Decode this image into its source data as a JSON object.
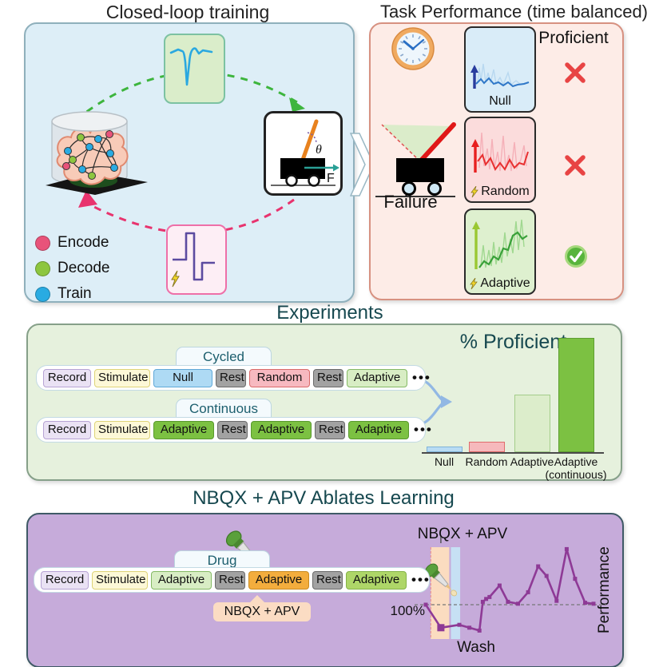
{
  "titles": {
    "closed_loop": "Closed-loop training",
    "task_performance": "Task Performance (time balanced)",
    "experiments": "Experiments",
    "ablation": "NBQX + APV Ablates Learning"
  },
  "closed_loop": {
    "legend": [
      {
        "label": "Encode",
        "color": "#e8537a"
      },
      {
        "label": "Decode",
        "color": "#8dc63f"
      },
      {
        "label": "Train",
        "color": "#29abe2"
      }
    ],
    "cart": {
      "theta_label": "θ",
      "force_label": "F"
    },
    "icons": {
      "spike_waveform": "spike-waveform-icon",
      "stimulus_waveform": "stimulus-pulse-icon",
      "lightning": "lightning-icon",
      "brain_dish": "brain-in-dish-icon"
    }
  },
  "task_performance": {
    "proficient_label": "Proficient",
    "failure_label": "Failure",
    "conditions": [
      {
        "label": "Null",
        "lightning": false,
        "verdict": "fail"
      },
      {
        "label": "Random",
        "lightning": true,
        "verdict": "fail"
      },
      {
        "label": "Adaptive",
        "lightning": true,
        "verdict": "pass"
      }
    ],
    "colors": {
      "fail_x": "#e84444",
      "pass_check": "#58b43c"
    }
  },
  "experiments": {
    "rows": [
      {
        "tab": "Cycled",
        "blocks": [
          {
            "label": "Record",
            "type": "record"
          },
          {
            "label": "Stimulate",
            "type": "stimulate"
          },
          {
            "label": "Null",
            "type": "null"
          },
          {
            "label": "Rest",
            "type": "rest"
          },
          {
            "label": "Random",
            "type": "random"
          },
          {
            "label": "Rest",
            "type": "rest"
          },
          {
            "label": "Adaptive",
            "type": "adaptive-light"
          }
        ],
        "ellipsis": "•••"
      },
      {
        "tab": "Continuous",
        "blocks": [
          {
            "label": "Record",
            "type": "record"
          },
          {
            "label": "Stimulate",
            "type": "stimulate"
          },
          {
            "label": "Adaptive",
            "type": "adaptive-solid"
          },
          {
            "label": "Rest",
            "type": "rest"
          },
          {
            "label": "Adaptive",
            "type": "adaptive-solid"
          },
          {
            "label": "Rest",
            "type": "rest"
          },
          {
            "label": "Adaptive",
            "type": "adaptive-solid"
          }
        ],
        "ellipsis": "•••"
      }
    ]
  },
  "ablation": {
    "row": {
      "tab": "Drug",
      "blocks": [
        {
          "label": "Record",
          "type": "record"
        },
        {
          "label": "Stimulate",
          "type": "stimulate"
        },
        {
          "label": "Adaptive",
          "type": "adaptive-light"
        },
        {
          "label": "Rest",
          "type": "rest"
        },
        {
          "label": "Adaptive",
          "type": "adaptive-drug"
        },
        {
          "label": "Rest",
          "type": "rest"
        },
        {
          "label": "Adaptive",
          "type": "adaptive-mid"
        }
      ],
      "ellipsis": "•••"
    },
    "callout": "NBQX + APV"
  },
  "chart_data": [
    {
      "type": "bar",
      "title": "% Proficient",
      "categories": [
        "Null",
        "Random",
        "Adaptive",
        "Adaptive (continuous)"
      ],
      "category_lines": [
        [
          "Null"
        ],
        [
          "Random"
        ],
        [
          "Adaptive"
        ],
        [
          "Adaptive",
          "(continuous)"
        ]
      ],
      "values": [
        5,
        9,
        50,
        100
      ],
      "xlabel": "",
      "ylabel": "% Proficient",
      "ylim": [
        0,
        100
      ],
      "grid": false,
      "legend": "none",
      "bar_colors": [
        "#b9dcf4",
        "#f6b9bc",
        "#dcedcb",
        "#7cc142"
      ],
      "bar_borders": [
        "#7fb3d8",
        "#e06c6c",
        "#a3cd8a",
        "#5f9e32"
      ]
    },
    {
      "type": "line",
      "title": "NBQX + APV",
      "ylabel": "Performance",
      "baseline_label": "100%",
      "baseline": 100,
      "wash_label": "Wash",
      "line_color": "#8e3a96",
      "x_axis": "time (sessions), unlabeled",
      "points": [
        [
          0,
          100
        ],
        [
          9,
          76
        ],
        [
          20,
          79
        ],
        [
          26,
          76
        ],
        [
          32,
          73
        ],
        [
          34,
          103
        ],
        [
          36,
          106
        ],
        [
          38,
          108
        ],
        [
          44,
          120
        ],
        [
          49,
          103
        ],
        [
          55,
          101
        ],
        [
          61,
          113
        ],
        [
          67,
          140
        ],
        [
          72,
          130
        ],
        [
          78,
          104
        ],
        [
          84,
          158
        ],
        [
          89,
          127
        ],
        [
          95,
          102
        ],
        [
          100,
          101
        ]
      ],
      "drug_band_x": [
        3,
        14
      ],
      "wash_band_x": [
        15,
        20.5
      ],
      "band_colors": {
        "drug": "#fbdcc0",
        "wash": "#c6e0f4"
      }
    }
  ]
}
